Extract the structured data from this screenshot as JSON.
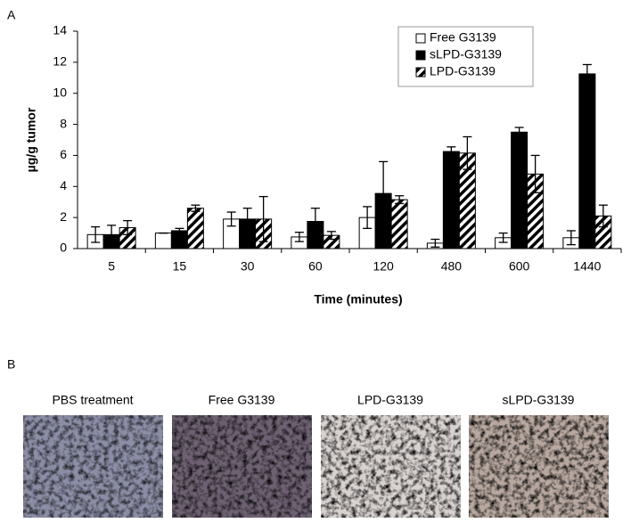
{
  "chart_data": {
    "type": "bar",
    "panel_label": "A",
    "x_label": "Time (minutes)",
    "y_label": "µg/g tumor",
    "categories": [
      "5",
      "15",
      "30",
      "60",
      "120",
      "480",
      "600",
      "1440"
    ],
    "series": [
      {
        "name": "Free G3139",
        "color": "#ffffff",
        "hatch": false,
        "values": [
          0.9,
          1.0,
          1.9,
          0.75,
          2.0,
          0.35,
          0.7,
          0.7
        ],
        "errors": [
          0.5,
          0,
          0.45,
          0.3,
          0.7,
          0.25,
          0.3,
          0.45
        ]
      },
      {
        "name": "sLPD-G3139",
        "color": "#000000",
        "hatch": false,
        "values": [
          0.9,
          1.15,
          1.9,
          1.75,
          3.55,
          6.25,
          7.5,
          11.25
        ],
        "errors": [
          0.6,
          0.15,
          0.7,
          0.85,
          2.05,
          0.3,
          0.3,
          0.6
        ]
      },
      {
        "name": "LPD-G3139",
        "color": "#000000",
        "hatch": true,
        "values": [
          1.35,
          2.6,
          1.9,
          0.85,
          3.15,
          6.15,
          4.8,
          2.1
        ],
        "errors": [
          0.45,
          0.2,
          1.45,
          0.25,
          0.25,
          1.05,
          1.2,
          0.7
        ]
      }
    ],
    "ylim": [
      0,
      14
    ],
    "yticks": [
      0,
      2,
      4,
      6,
      8,
      10,
      12,
      14
    ],
    "grid": false,
    "legend": "top-right"
  },
  "panel_b": {
    "label": "B",
    "images": [
      {
        "title": "PBS  treatment"
      },
      {
        "title": "Free G3139"
      },
      {
        "title": "LPD-G3139"
      },
      {
        "title": "sLPD-G3139"
      }
    ]
  }
}
